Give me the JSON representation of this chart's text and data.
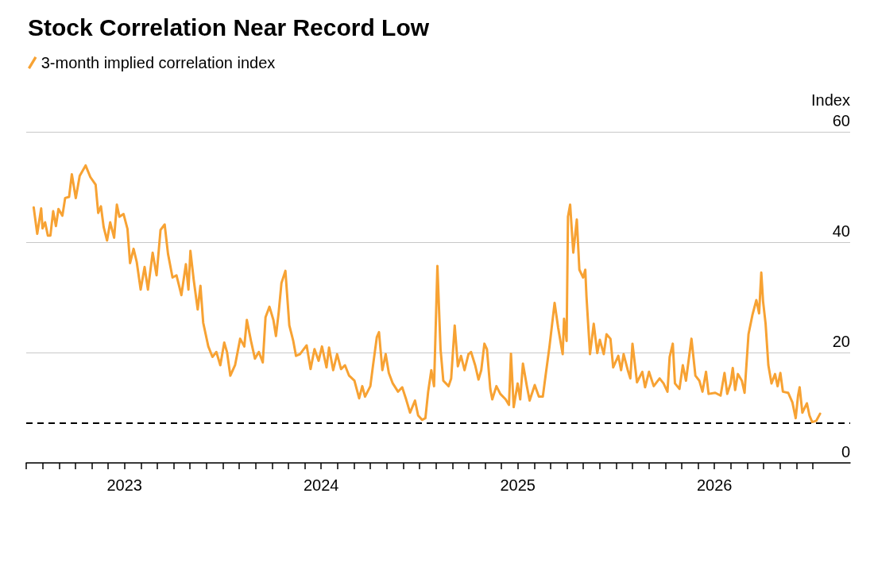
{
  "chart_data": {
    "type": "line",
    "title": "Stock Correlation Near Record Low",
    "ylabel": "Index",
    "x": [
      2022.538,
      2022.556,
      2022.576,
      2022.583,
      2022.596,
      2022.61,
      2022.623,
      2022.637,
      2022.651,
      2022.664,
      2022.684,
      2022.698,
      2022.718,
      2022.732,
      2022.752,
      2022.772,
      2022.802,
      2022.826,
      2022.853,
      2022.866,
      2022.88,
      2022.894,
      2022.911,
      2022.927,
      2022.947,
      2022.961,
      2022.974,
      2022.995,
      2023.015,
      2023.028,
      2023.046,
      2023.062,
      2023.082,
      2023.102,
      2023.119,
      2023.143,
      2023.163,
      2023.183,
      2023.204,
      2023.221,
      2023.244,
      2023.264,
      2023.289,
      2023.312,
      2023.325,
      2023.335,
      2023.352,
      2023.372,
      2023.386,
      2023.4,
      2023.426,
      2023.447,
      2023.467,
      2023.487,
      2023.507,
      2023.521,
      2023.538,
      2023.562,
      2023.588,
      2023.609,
      2023.622,
      2023.643,
      2023.663,
      2023.683,
      2023.703,
      2023.717,
      2023.737,
      2023.757,
      2023.77,
      2023.784,
      2023.798,
      2023.818,
      2023.838,
      2023.858,
      2023.872,
      2023.892,
      2023.926,
      2023.946,
      2023.966,
      2023.987,
      2024.004,
      2024.027,
      2024.04,
      2024.061,
      2024.081,
      2024.101,
      2024.121,
      2024.142,
      2024.169,
      2024.193,
      2024.209,
      2024.223,
      2024.25,
      2024.263,
      2024.283,
      2024.294,
      2024.311,
      2024.328,
      2024.344,
      2024.364,
      2024.391,
      2024.412,
      2024.432,
      2024.452,
      2024.477,
      2024.493,
      2024.513,
      2024.53,
      2024.544,
      2024.56,
      2024.574,
      2024.591,
      2024.607,
      2024.621,
      2024.648,
      2024.661,
      2024.679,
      2024.695,
      2024.711,
      2024.729,
      2024.749,
      2024.762,
      2024.783,
      2024.8,
      2024.814,
      2024.83,
      2024.843,
      2024.86,
      2024.87,
      2024.891,
      2024.911,
      2024.938,
      2024.955,
      2024.965,
      2024.979,
      2024.999,
      2025.012,
      2025.026,
      2025.046,
      2025.06,
      2025.086,
      2025.107,
      2025.127,
      2025.141,
      2025.161,
      2025.187,
      2025.205,
      2025.228,
      2025.235,
      2025.248,
      2025.255,
      2025.266,
      2025.282,
      2025.3,
      2025.313,
      2025.332,
      2025.343,
      2025.349,
      2025.367,
      2025.386,
      2025.404,
      2025.417,
      2025.437,
      2025.451,
      2025.471,
      2025.485,
      2025.511,
      2025.525,
      2025.538,
      2025.559,
      2025.572,
      2025.583,
      2025.606,
      2025.633,
      2025.647,
      2025.667,
      2025.691,
      2025.721,
      2025.741,
      2025.761,
      2025.772,
      2025.788,
      2025.799,
      2025.822,
      2025.839,
      2025.855,
      2025.883,
      2025.903,
      2025.923,
      2025.939,
      2025.957,
      2025.97,
      2026.004,
      2026.031,
      2026.051,
      2026.065,
      2026.082,
      2026.093,
      2026.105,
      2026.119,
      2026.139,
      2026.153,
      2026.173,
      2026.193,
      2026.213,
      2026.227,
      2026.238,
      2026.247,
      2026.26,
      2026.274,
      2026.29,
      2026.308,
      2026.321,
      2026.335,
      2026.348,
      2026.375,
      2026.396,
      2026.413,
      2026.425,
      2026.433,
      2026.447,
      2026.47,
      2026.483,
      2026.497,
      2026.517,
      2026.537
    ],
    "series": [
      {
        "name": "3-month implied correlation index",
        "color": "#f7a233",
        "values": [
          46.3,
          41.5,
          46.1,
          42.5,
          43.6,
          41.2,
          41.2,
          45.6,
          42.9,
          46.0,
          44.8,
          48.0,
          48.2,
          52.3,
          48.0,
          52.0,
          53.9,
          51.8,
          50.4,
          45.3,
          46.5,
          42.7,
          40.3,
          43.6,
          40.8,
          46.8,
          44.6,
          45.1,
          42.4,
          36.2,
          38.8,
          36.4,
          31.4,
          35.5,
          31.4,
          38.1,
          34.0,
          42.2,
          43.2,
          37.9,
          33.6,
          34.0,
          30.4,
          36.0,
          31.4,
          38.4,
          33.1,
          27.8,
          32.1,
          25.4,
          21.1,
          19.2,
          20.1,
          17.7,
          21.8,
          20.1,
          15.8,
          17.7,
          22.5,
          21.1,
          25.9,
          22.1,
          18.9,
          20.1,
          18.2,
          26.4,
          28.3,
          25.9,
          23.0,
          27.3,
          32.6,
          34.8,
          24.9,
          22.1,
          19.4,
          19.7,
          21.3,
          17.0,
          20.6,
          18.5,
          21.1,
          17.3,
          20.9,
          16.8,
          19.7,
          17.0,
          17.7,
          15.8,
          14.9,
          11.7,
          13.9,
          12.0,
          13.9,
          17.5,
          22.8,
          23.7,
          16.8,
          19.7,
          16.3,
          14.4,
          12.9,
          13.7,
          11.5,
          9.1,
          11.3,
          8.6,
          7.8,
          8.1,
          12.9,
          16.8,
          13.9,
          35.7,
          20.6,
          14.9,
          13.9,
          15.3,
          24.9,
          17.5,
          19.4,
          16.8,
          19.7,
          20.1,
          17.7,
          15.1,
          16.8,
          21.6,
          20.6,
          13.4,
          11.5,
          13.9,
          12.5,
          11.5,
          10.5,
          19.8,
          10.1,
          14.4,
          11.5,
          18.0,
          13.9,
          11.3,
          14.1,
          12.0,
          12.0,
          15.8,
          21.1,
          29.0,
          24.5,
          19.7,
          26.1,
          22.1,
          44.6,
          46.8,
          38.1,
          44.1,
          35.0,
          33.6,
          35.0,
          30.2,
          19.7,
          25.2,
          19.9,
          22.3,
          19.7,
          23.3,
          22.5,
          17.3,
          19.4,
          16.8,
          19.7,
          16.8,
          15.3,
          21.6,
          14.6,
          16.5,
          13.7,
          16.5,
          13.9,
          15.3,
          14.4,
          12.9,
          19.2,
          21.6,
          14.4,
          13.4,
          17.7,
          14.9,
          22.5,
          15.8,
          14.9,
          12.9,
          16.5,
          12.5,
          12.7,
          12.2,
          16.3,
          12.5,
          14.4,
          17.2,
          13.2,
          16.1,
          14.9,
          12.7,
          23.3,
          26.8,
          29.5,
          27.1,
          34.5,
          29.3,
          25.2,
          17.7,
          14.4,
          16.1,
          13.9,
          16.3,
          12.9,
          12.7,
          11.0,
          8.1,
          12.2,
          13.7,
          9.1,
          10.8,
          8.6,
          7.4,
          7.6,
          8.9
        ]
      }
    ],
    "xlim": [
      2022.5,
      2026.69
    ],
    "xticks": [
      {
        "value": 2022.5,
        "label": null
      },
      {
        "value": 2022.583,
        "label": null
      },
      {
        "value": 2022.667,
        "label": null
      },
      {
        "value": 2022.75,
        "label": null
      },
      {
        "value": 2022.833,
        "label": null
      },
      {
        "value": 2022.917,
        "label": null
      },
      2023,
      {
        "value": 2023.083,
        "label": null
      },
      {
        "value": 2023.167,
        "label": null
      },
      {
        "value": 2023.25,
        "label": null
      },
      {
        "value": 2023.333,
        "label": null
      },
      {
        "value": 2023.417,
        "label": null
      },
      {
        "value": 2023.5,
        "label": null
      },
      {
        "value": 2023.583,
        "label": null
      },
      {
        "value": 2023.667,
        "label": null
      },
      {
        "value": 2023.75,
        "label": null
      },
      {
        "value": 2023.833,
        "label": null
      },
      {
        "value": 2023.917,
        "label": null
      },
      2024,
      {
        "value": 2024.083,
        "label": null
      },
      {
        "value": 2024.167,
        "label": null
      },
      {
        "value": 2024.25,
        "label": null
      },
      {
        "value": 2024.333,
        "label": null
      },
      {
        "value": 2024.417,
        "label": null
      },
      {
        "value": 2024.5,
        "label": null
      },
      {
        "value": 2024.583,
        "label": null
      },
      {
        "value": 2024.667,
        "label": null
      },
      {
        "value": 2024.75,
        "label": null
      },
      {
        "value": 2024.833,
        "label": null
      },
      {
        "value": 2024.917,
        "label": null
      },
      2025,
      {
        "value": 2025.083,
        "label": null
      },
      {
        "value": 2025.167,
        "label": null
      },
      {
        "value": 2025.25,
        "label": null
      },
      {
        "value": 2025.333,
        "label": null
      },
      {
        "value": 2025.417,
        "label": null
      },
      {
        "value": 2025.5,
        "label": null
      },
      {
        "value": 2025.583,
        "label": null
      },
      {
        "value": 2025.667,
        "label": null
      },
      {
        "value": 2025.75,
        "label": null
      },
      {
        "value": 2025.833,
        "label": null
      },
      {
        "value": 2025.917,
        "label": null
      },
      2026,
      {
        "value": 2026.083,
        "label": null
      },
      {
        "value": 2026.167,
        "label": null
      },
      {
        "value": 2026.25,
        "label": null
      },
      {
        "value": 2026.333,
        "label": null
      },
      {
        "value": 2026.417,
        "label": null
      },
      {
        "value": 2026.5,
        "label": null
      }
    ],
    "ylim": [
      0,
      60
    ],
    "yticks": [
      0,
      20,
      40,
      60
    ],
    "grid": "y",
    "legend": "top left",
    "marker": "none",
    "ref_lines": [
      {
        "axis": "y",
        "value": 7.2,
        "color": "#000000",
        "line_style": "dashed"
      }
    ]
  }
}
